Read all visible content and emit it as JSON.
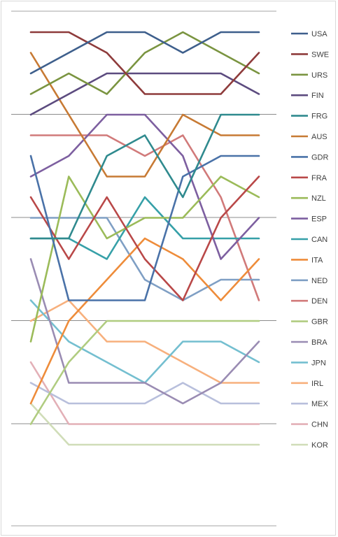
{
  "chart_data": {
    "type": "line",
    "title": "",
    "xlabel": "",
    "ylabel": "",
    "x": [
      1,
      2,
      3,
      4,
      5,
      6,
      7
    ],
    "ylim": [
      1,
      25
    ],
    "y_inverted": true,
    "gridlines": "horizontal",
    "legend_position": "right",
    "series": [
      {
        "name": "USA",
        "color": "#3e5f8c",
        "values": [
          3,
          2,
          1,
          1,
          2,
          1,
          1
        ]
      },
      {
        "name": "SWE",
        "color": "#8e3b3b",
        "values": [
          1,
          1,
          2,
          4,
          4,
          4,
          2
        ]
      },
      {
        "name": "URS",
        "color": "#7a9440",
        "values": [
          4,
          3,
          4,
          2,
          1,
          2,
          3
        ]
      },
      {
        "name": "FIN",
        "color": "#5c4b7f",
        "values": [
          5,
          4,
          3,
          3,
          3,
          3,
          4
        ]
      },
      {
        "name": "FRG",
        "color": "#2f8a8e",
        "values": [
          11,
          11,
          7,
          6,
          9,
          5,
          5
        ]
      },
      {
        "name": "AUS",
        "color": "#c77a34",
        "values": [
          2,
          5,
          8,
          8,
          5,
          6,
          6
        ]
      },
      {
        "name": "GDR",
        "color": "#4a72a8",
        "values": [
          7,
          14,
          14,
          14,
          8,
          7,
          7
        ]
      },
      {
        "name": "FRA",
        "color": "#b94848",
        "values": [
          9,
          12,
          9,
          12,
          14,
          10,
          8
        ]
      },
      {
        "name": "NZL",
        "color": "#9bbb59",
        "values": [
          16,
          8,
          11,
          10,
          10,
          8,
          9
        ]
      },
      {
        "name": "ESP",
        "color": "#7d5fa0",
        "values": [
          8,
          7,
          5,
          5,
          7,
          12,
          10
        ]
      },
      {
        "name": "CAN",
        "color": "#36a0a8",
        "values": [
          11,
          11,
          12,
          9,
          11,
          11,
          11
        ]
      },
      {
        "name": "ITA",
        "color": "#ee8c3a",
        "values": [
          19,
          15,
          13,
          11,
          12,
          14,
          12
        ]
      },
      {
        "name": "NED",
        "color": "#7f9fc4",
        "values": [
          10,
          10,
          10,
          13,
          14,
          13,
          13
        ]
      },
      {
        "name": "DEN",
        "color": "#d17a7a",
        "values": [
          6,
          6,
          6,
          7,
          6,
          9,
          14
        ]
      },
      {
        "name": "GBR",
        "color": "#b0cc80",
        "values": [
          20,
          17,
          15,
          15,
          15,
          15,
          15
        ]
      },
      {
        "name": "BRA",
        "color": "#9a8cb3",
        "values": [
          12,
          18,
          18,
          18,
          19,
          18,
          16
        ]
      },
      {
        "name": "JPN",
        "color": "#74bfd0",
        "values": [
          14,
          16,
          17,
          18,
          16,
          16,
          17
        ]
      },
      {
        "name": "IRL",
        "color": "#f7b07d",
        "values": [
          15,
          14,
          16,
          16,
          17,
          18,
          18
        ]
      },
      {
        "name": "MEX",
        "color": "#b8bfdc",
        "values": [
          18,
          19,
          19,
          19,
          18,
          19,
          19
        ]
      },
      {
        "name": "CHN",
        "color": "#e3b0b7",
        "values": [
          17,
          20,
          20,
          20,
          20,
          20,
          20
        ]
      },
      {
        "name": "KOR",
        "color": "#d0ddb8",
        "values": [
          19,
          21,
          21,
          21,
          21,
          21,
          21
        ]
      }
    ]
  }
}
